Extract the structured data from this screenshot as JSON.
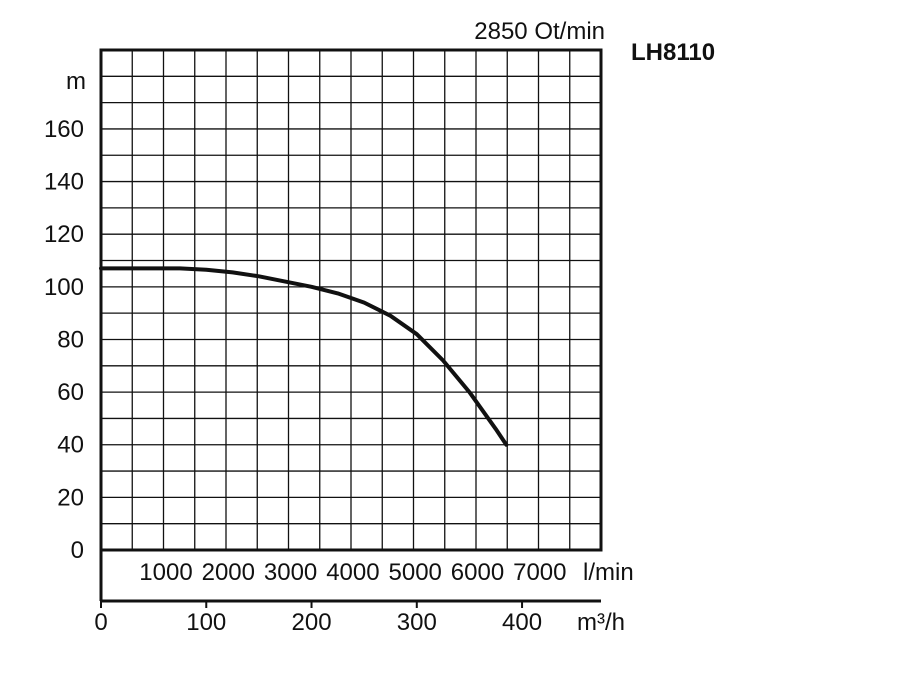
{
  "chart_data": {
    "type": "line",
    "title": "LH8110",
    "subtitle": "2850 Ot/min",
    "ylabel": "m",
    "ylim": [
      0,
      190
    ],
    "y_ticks": [
      0,
      20,
      40,
      60,
      80,
      100,
      120,
      140,
      160
    ],
    "x_axes": [
      {
        "unit": "l/min",
        "ticks": [
          1000,
          2000,
          3000,
          4000,
          5000,
          6000,
          7000
        ]
      },
      {
        "unit": "m³/h",
        "ticks": [
          0,
          100,
          200,
          300,
          400
        ],
        "range": [
          0,
          475
        ]
      }
    ],
    "grid": true,
    "series": [
      {
        "x": [
          0,
          25,
          50,
          75,
          100,
          125,
          150,
          175,
          200,
          225,
          250,
          275,
          300,
          325,
          350,
          375,
          385
        ],
        "y": [
          107,
          107,
          107,
          107,
          106.5,
          105.5,
          104,
          102,
          100,
          97.5,
          94,
          89,
          82,
          72,
          60,
          46,
          40
        ]
      }
    ]
  }
}
